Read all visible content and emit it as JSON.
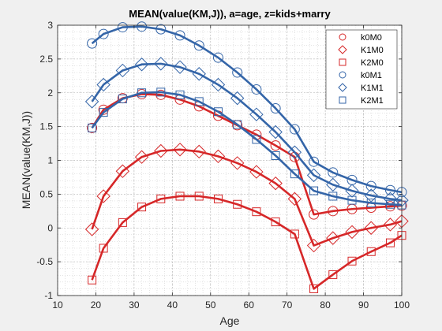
{
  "chart_data": {
    "type": "line",
    "title": "MEAN(value(KM,J)), a=age, z=kids+marry",
    "xlabel": "Age",
    "ylabel": "MEAN(value(KM,J))",
    "xlim": [
      10,
      100
    ],
    "ylim": [
      -1,
      3
    ],
    "xticks": [
      "10",
      "20",
      "30",
      "40",
      "50",
      "60",
      "70",
      "80",
      "90",
      "100"
    ],
    "yticks": [
      "-1",
      "-0.5",
      "0",
      "0.5",
      "1",
      "1.5",
      "2",
      "2.5",
      "3"
    ],
    "grid": true,
    "minor_grid": true,
    "legend_position": "top-right",
    "x": [
      19,
      22,
      27,
      32,
      37,
      42,
      47,
      52,
      57,
      62,
      67,
      72,
      77,
      82,
      87,
      92,
      97,
      100
    ],
    "series": [
      {
        "name": "k0M0",
        "color": "#d62728",
        "marker": "circle",
        "values": [
          1.48,
          1.75,
          1.92,
          1.98,
          1.97,
          1.9,
          1.8,
          1.66,
          1.52,
          1.38,
          1.22,
          1.05,
          0.2,
          0.25,
          0.28,
          0.3,
          0.32,
          0.33
        ]
      },
      {
        "name": "K1M0",
        "color": "#d62728",
        "marker": "diamond",
        "values": [
          -0.02,
          0.47,
          0.84,
          1.05,
          1.14,
          1.16,
          1.13,
          1.06,
          0.96,
          0.83,
          0.66,
          0.43,
          -0.26,
          -0.15,
          -0.06,
          0.0,
          0.05,
          0.1
        ]
      },
      {
        "name": "K2M0",
        "color": "#d62728",
        "marker": "square",
        "values": [
          -0.77,
          -0.3,
          0.08,
          0.31,
          0.43,
          0.47,
          0.47,
          0.43,
          0.35,
          0.24,
          0.09,
          -0.09,
          -0.9,
          -0.69,
          -0.49,
          -0.35,
          -0.22,
          -0.11
        ]
      },
      {
        "name": "k0M1",
        "color": "#3465a8",
        "marker": "circle",
        "values": [
          2.73,
          2.87,
          2.97,
          2.98,
          2.94,
          2.85,
          2.7,
          2.52,
          2.3,
          2.05,
          1.77,
          1.46,
          0.98,
          0.82,
          0.71,
          0.62,
          0.56,
          0.53
        ]
      },
      {
        "name": "K1M1",
        "color": "#3465a8",
        "marker": "diamond",
        "values": [
          1.87,
          2.12,
          2.33,
          2.42,
          2.43,
          2.38,
          2.28,
          2.12,
          1.92,
          1.68,
          1.42,
          1.12,
          0.78,
          0.64,
          0.55,
          0.48,
          0.43,
          0.41
        ]
      },
      {
        "name": "K2M1",
        "color": "#3465a8",
        "marker": "square",
        "values": [
          1.48,
          1.71,
          1.91,
          2.0,
          2.01,
          1.97,
          1.87,
          1.72,
          1.53,
          1.31,
          1.07,
          0.8,
          0.55,
          0.47,
          0.41,
          0.37,
          0.35,
          0.34
        ]
      }
    ]
  }
}
